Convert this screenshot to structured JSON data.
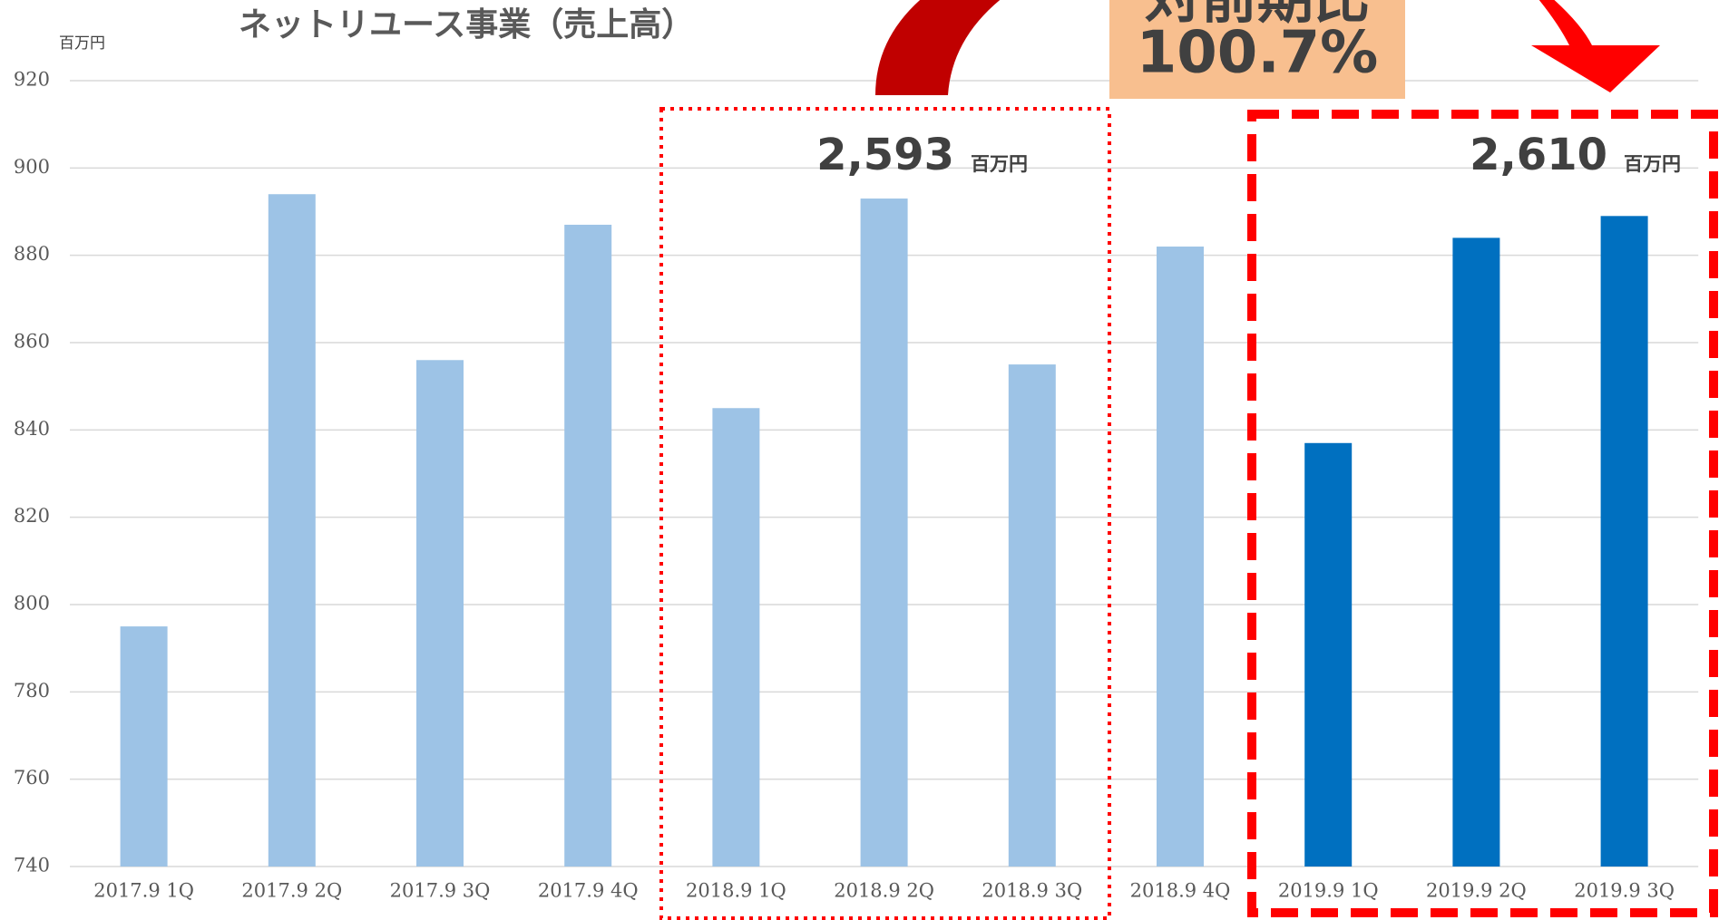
{
  "chart_data": {
    "type": "bar",
    "title": "ネットリユース事業（売上高）",
    "y_unit": "百万円",
    "categories": [
      "2017.9 1Q",
      "2017.9 2Q",
      "2017.9 3Q",
      "2017.9 4Q",
      "2018.9 1Q",
      "2018.9 2Q",
      "2018.9 3Q",
      "2018.9 4Q",
      "2019.9 1Q",
      "2019.9 2Q",
      "2019.9 3Q"
    ],
    "values": [
      795,
      894,
      856,
      887,
      845,
      893,
      855,
      882,
      837,
      884,
      889
    ],
    "colors": [
      "#9dc3e6",
      "#9dc3e6",
      "#9dc3e6",
      "#9dc3e6",
      "#9dc3e6",
      "#9dc3e6",
      "#9dc3e6",
      "#9dc3e6",
      "#0070c0",
      "#0070c0",
      "#0070c0"
    ],
    "ylim": [
      740,
      920
    ],
    "yticks": [
      740,
      760,
      780,
      800,
      820,
      840,
      860,
      880,
      900,
      920
    ],
    "grid": true,
    "annotations": [
      "対前期比",
      "100.7%",
      "2,593",
      "百万円",
      "2,610",
      "百万円"
    ]
  }
}
